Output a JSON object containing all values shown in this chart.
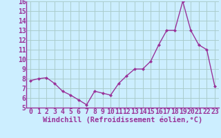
{
  "x": [
    0,
    1,
    2,
    3,
    4,
    5,
    6,
    7,
    8,
    9,
    10,
    11,
    12,
    13,
    14,
    15,
    16,
    17,
    18,
    19,
    20,
    21,
    22,
    23
  ],
  "y": [
    7.8,
    8.0,
    8.1,
    7.5,
    6.7,
    6.3,
    5.8,
    5.3,
    6.7,
    6.5,
    6.3,
    7.5,
    8.3,
    9.0,
    9.0,
    9.8,
    11.5,
    13.0,
    13.0,
    16.0,
    13.0,
    11.5,
    11.0,
    7.2
  ],
  "line_color": "#993399",
  "marker": "D",
  "marker_size": 2.0,
  "bg_color": "#cceeff",
  "grid_color": "#aacccc",
  "xlabel": "Windchill (Refroidissement éolien,°C)",
  "xlabel_color": "#993399",
  "tick_color": "#993399",
  "ylim": [
    5,
    16
  ],
  "xlim": [
    -0.5,
    23.5
  ],
  "yticks": [
    5,
    6,
    7,
    8,
    9,
    10,
    11,
    12,
    13,
    14,
    15,
    16
  ],
  "xticks": [
    0,
    1,
    2,
    3,
    4,
    5,
    6,
    7,
    8,
    9,
    10,
    11,
    12,
    13,
    14,
    15,
    16,
    17,
    18,
    19,
    20,
    21,
    22,
    23
  ],
  "xlabel_fontsize": 7.5,
  "tick_fontsize": 7.0,
  "line_width": 1.0
}
